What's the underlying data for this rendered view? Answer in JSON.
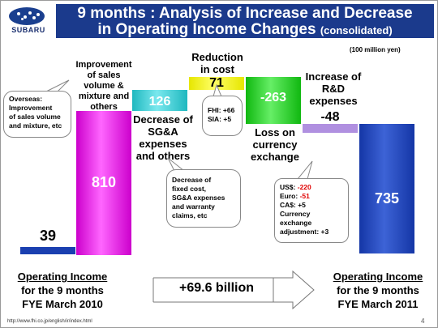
{
  "header": {
    "logo_text": "SUBARU",
    "title_line1": "9 months : Analysis of Increase and Decrease",
    "title_line2": "in Operating Income Changes",
    "title_suffix": "(consolidated)",
    "unit": "(100 million yen)"
  },
  "colors": {
    "title_bg": "#1b3a8c",
    "base_bar": "#1a3fb0",
    "sales_bar": "#cc00cc",
    "sga_bar": "#26c6cc",
    "cost_bar": "#ffff00",
    "currency_bar": "#11cc11",
    "rd_bar": "#b090e0",
    "end_bar": "#1a3fb0"
  },
  "chart_data": {
    "type": "bar",
    "categories": [
      "Operating Income for the 9 months FYE March 2010",
      "Improvement of sales volume & mixture and others",
      "Decrease of SG&A expenses and others",
      "Reduction in cost",
      "Loss on currency exchange",
      "Increase of R&D expenses",
      "Operating Income for the 9 months FYE March 2011"
    ],
    "values": [
      39,
      810,
      126,
      71,
      -263,
      -48,
      735
    ],
    "value_labels": [
      "39",
      "810",
      "126",
      "71",
      "-263",
      "-48",
      "735"
    ]
  },
  "labels": {
    "sales": [
      "Improvement",
      "of sales",
      "volume &",
      "mixture and",
      "others"
    ],
    "sga": [
      "Decrease of",
      "SG&A",
      "expenses",
      "and others"
    ],
    "cost": [
      "Reduction",
      "in cost"
    ],
    "currency": [
      "Loss on",
      "currency",
      "exchange"
    ],
    "rd": [
      "Increase of",
      "R&D",
      "expenses"
    ]
  },
  "callouts": {
    "overseas": [
      "Overseas:",
      "Improvement",
      "of sales volume",
      "and mixture, etc"
    ],
    "cost_detail": [
      "FHI: +66",
      "SIA: +5"
    ],
    "sga_detail": [
      "Decrease of",
      "fixed cost,",
      "SG&A expenses",
      "and warranty",
      "claims, etc"
    ],
    "currency_detail": {
      "us_label": "US$:",
      "us_value": "-220",
      "euro_label": "Euro:",
      "euro_value": "-51",
      "ca": "CA$: +5",
      "other1": "Currency",
      "other2": "exchange",
      "other3": "adjustment: +3"
    }
  },
  "bottom": {
    "left_title": "Operating Income",
    "left_line2": "for the 9 months",
    "left_line3": "FYE March 2010",
    "change": "+69.6 billion",
    "right_title": "Operating  Income",
    "right_line2": "for the 9 months",
    "right_line3": "FYE March 2011"
  },
  "footer": {
    "url": "http://www.fhi.co.jp/english/ir/index.html",
    "page": "4"
  }
}
